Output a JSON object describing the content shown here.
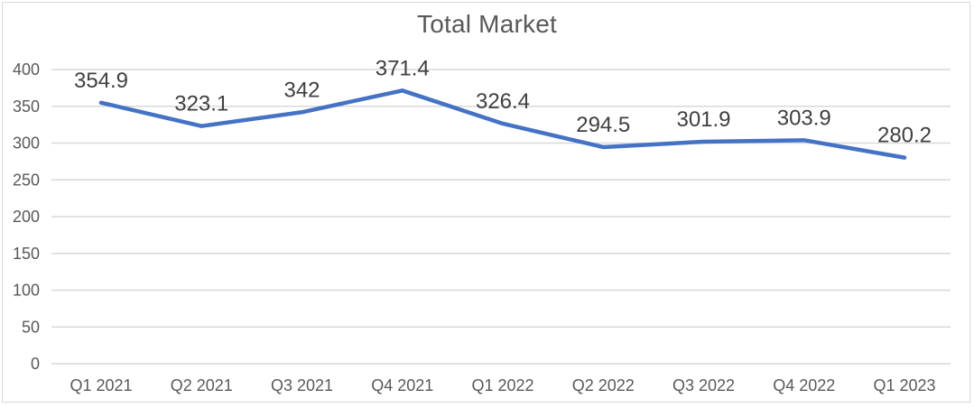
{
  "chart_data": {
    "type": "line",
    "title": "Total Market",
    "categories": [
      "Q1 2021",
      "Q2 2021",
      "Q3 2021",
      "Q4 2021",
      "Q1 2022",
      "Q2 2022",
      "Q3 2022",
      "Q4 2022",
      "Q1 2023"
    ],
    "series": [
      {
        "name": "Total Market",
        "values": [
          354.9,
          323.1,
          342,
          371.4,
          326.4,
          294.5,
          301.9,
          303.9,
          280.2
        ]
      }
    ],
    "data_labels": [
      "354.9",
      "323.1",
      "342",
      "371.4",
      "326.4",
      "294.5",
      "301.9",
      "303.9",
      "280.2"
    ],
    "xlabel": "",
    "ylabel": "",
    "ylim": [
      0,
      400
    ],
    "ytick_step": 50,
    "ytick_labels": [
      "0",
      "50",
      "100",
      "150",
      "200",
      "250",
      "300",
      "350",
      "400"
    ],
    "grid": true,
    "legend": "none",
    "colors": {
      "line": "#4472C4",
      "gridline": "#d9d9d9",
      "title": "#595959",
      "axis_labels": "#595959",
      "data_labels": "#404040",
      "background": "#ffffff",
      "border": "#d9d9d9"
    }
  }
}
